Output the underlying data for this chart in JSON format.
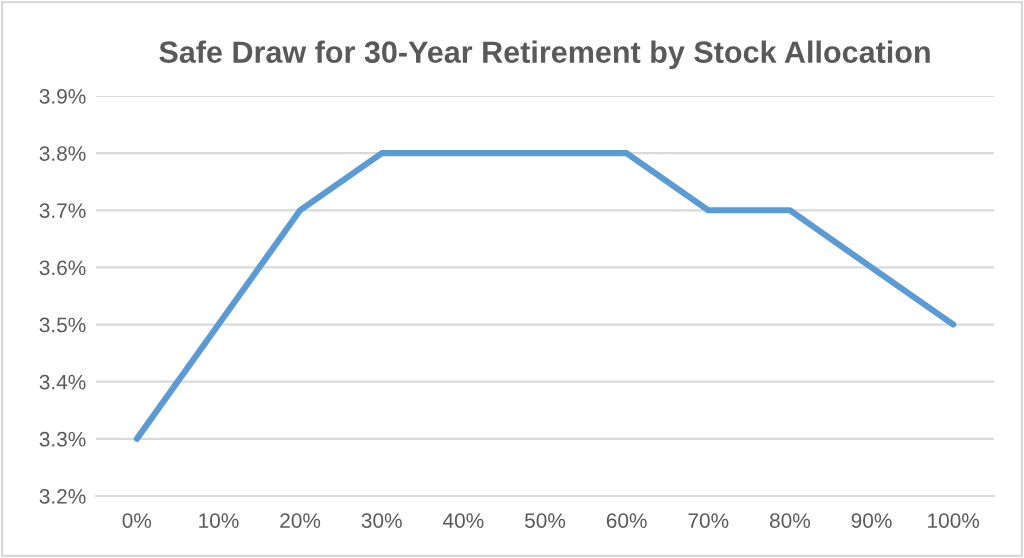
{
  "chart_data": {
    "type": "line",
    "title": "Safe Draw for 30-Year Retirement by Stock Allocation",
    "categories": [
      "0%",
      "10%",
      "20%",
      "30%",
      "40%",
      "50%",
      "60%",
      "70%",
      "80%",
      "90%",
      "100%"
    ],
    "series": [
      {
        "color": "#5b9bd5",
        "values": [
          3.3,
          3.5,
          3.7,
          3.8,
          3.8,
          3.8,
          3.8,
          3.7,
          3.7,
          3.6,
          3.5
        ]
      }
    ],
    "ylim": [
      3.2,
      3.9
    ],
    "yticks": [
      {
        "value": 3.2,
        "label": "3.2%"
      },
      {
        "value": 3.3,
        "label": "3.3%"
      },
      {
        "value": 3.4,
        "label": "3.4%"
      },
      {
        "value": 3.5,
        "label": "3.5%"
      },
      {
        "value": 3.6,
        "label": "3.6%"
      },
      {
        "value": 3.7,
        "label": "3.7%"
      },
      {
        "value": 3.8,
        "label": "3.8%"
      },
      {
        "value": 3.9,
        "label": "3.9%"
      }
    ],
    "grid": "y",
    "legend": false,
    "marker": "none",
    "line_style": "solid"
  }
}
